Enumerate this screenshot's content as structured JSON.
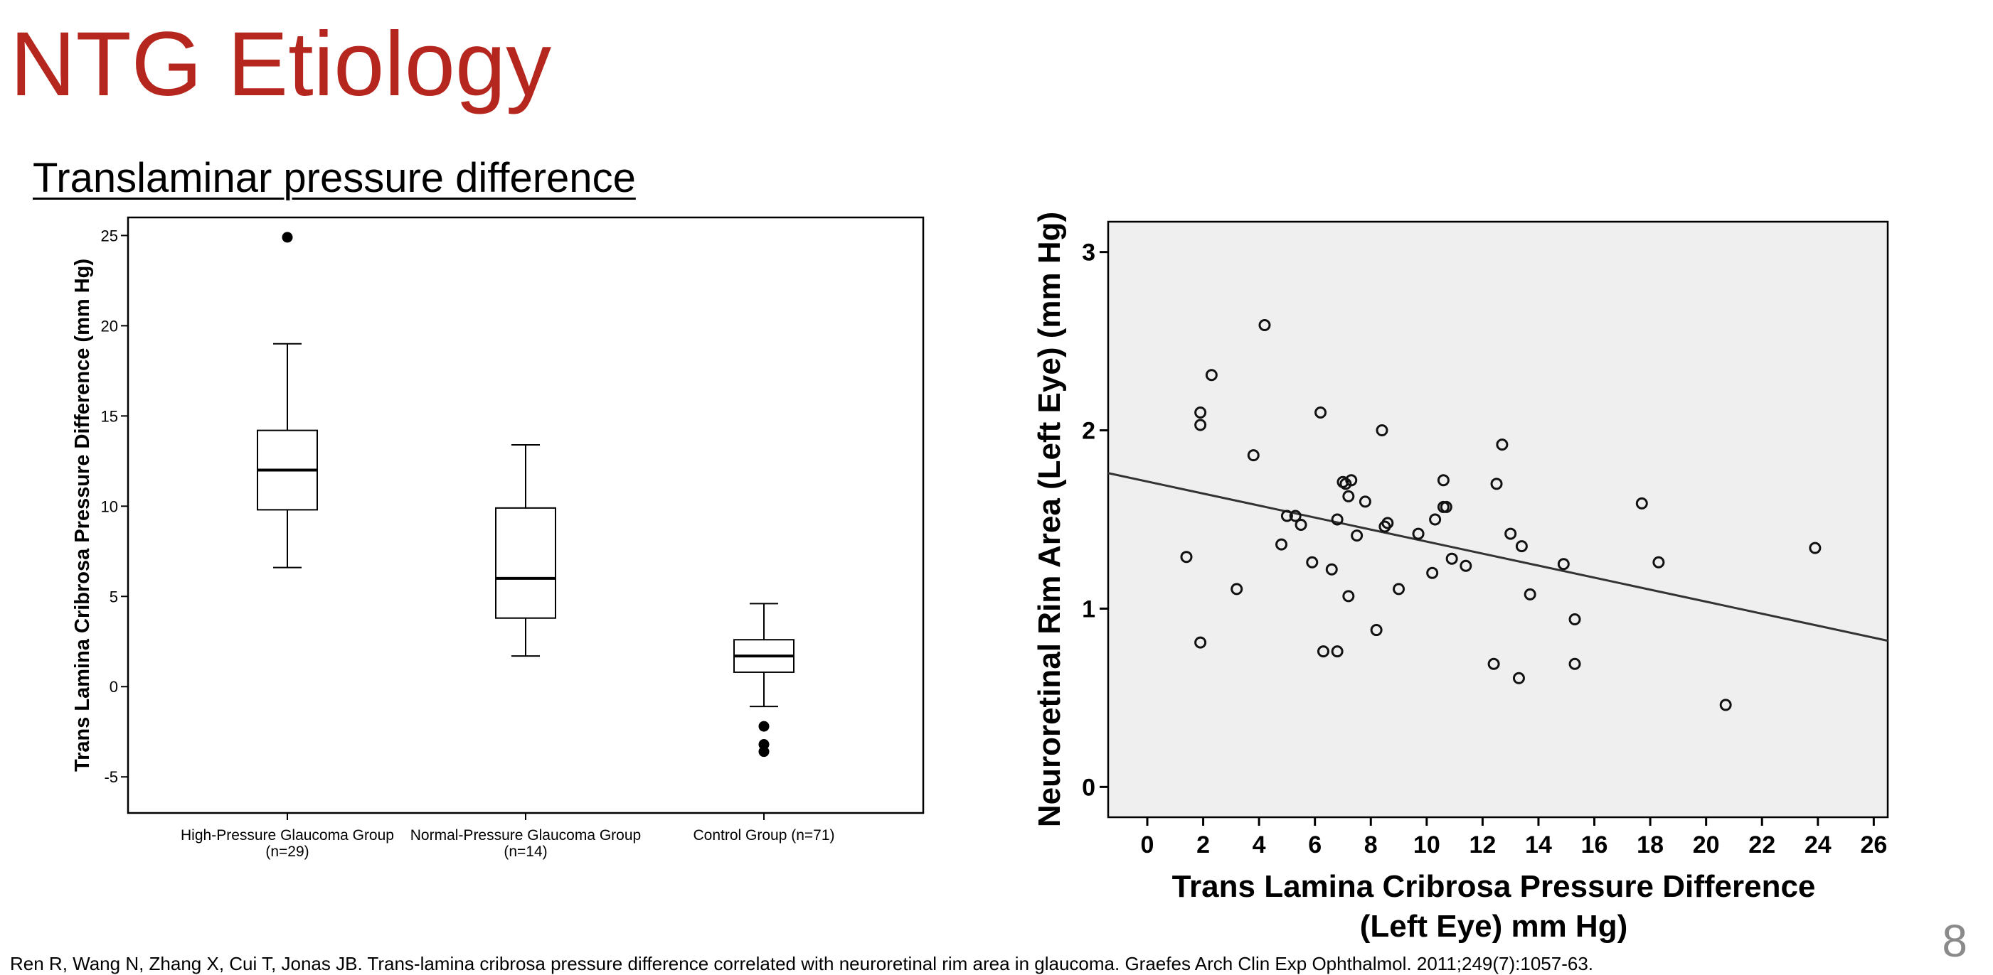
{
  "slide": {
    "title": "NTG Etiology",
    "subtitle": "Translaminar pressure difference",
    "footnote": "Ren R, Wang N, Zhang X, Cui T, Jonas JB. Trans-lamina cribrosa pressure difference correlated with neuroretinal rim area in glaucoma. Graefes Arch Clin Exp Ophthalmol. 2011;249(7):1057-63.",
    "page_number": "8"
  },
  "chart_data": [
    {
      "type": "box",
      "title": "",
      "ylabel": "Trans Lamina Cribrosa Pressure Difference (mm Hg)",
      "xlabel": "",
      "ylim": [
        -7,
        26
      ],
      "yticks": [
        25,
        20,
        15,
        10,
        5,
        0,
        -5
      ],
      "grid": false,
      "groups": [
        {
          "label_line1": "High-Pressure Glaucoma Group",
          "label_line2": "(n=29)",
          "whisker_low": 6.6,
          "q1": 9.8,
          "median": 12.0,
          "q3": 14.2,
          "whisker_high": 19.0,
          "outliers": [
            24.9
          ]
        },
        {
          "label_line1": "Normal-Pressure Glaucoma Group",
          "label_line2": "(n=14)",
          "whisker_low": 1.7,
          "q1": 3.8,
          "median": 6.0,
          "q3": 9.9,
          "whisker_high": 13.4,
          "outliers": []
        },
        {
          "label_line1": "Control Group (n=71)",
          "label_line2": "",
          "whisker_low": -1.1,
          "q1": 0.8,
          "median": 1.7,
          "q3": 2.6,
          "whisker_high": 4.6,
          "outliers": [
            -2.2,
            -3.2,
            -3.6
          ]
        }
      ]
    },
    {
      "type": "scatter",
      "title": "",
      "ylabel": "Neuroretinal Rim Area (Left Eye) (mm Hg)",
      "xlabel_line1": "Trans Lamina Cribrosa Pressure Difference",
      "xlabel_line2": "(Left Eye) mm Hg)",
      "xlim": [
        -1.4,
        26.5
      ],
      "ylim": [
        -0.17,
        3.17
      ],
      "xticks": [
        0,
        2,
        4,
        6,
        8,
        10,
        12,
        14,
        16,
        18,
        20,
        22,
        24,
        26
      ],
      "yticks": [
        0,
        1,
        2,
        3
      ],
      "grid": false,
      "fit_line": {
        "x": [
          -1.4,
          26.5
        ],
        "y": [
          1.76,
          0.82
        ]
      },
      "points": [
        [
          1.4,
          1.29
        ],
        [
          1.9,
          0.81
        ],
        [
          1.9,
          2.1
        ],
        [
          1.9,
          2.03
        ],
        [
          2.3,
          2.31
        ],
        [
          3.2,
          1.11
        ],
        [
          3.8,
          1.86
        ],
        [
          4.2,
          2.59
        ],
        [
          4.8,
          1.36
        ],
        [
          5.0,
          1.52
        ],
        [
          5.3,
          1.52
        ],
        [
          5.5,
          1.47
        ],
        [
          5.9,
          1.26
        ],
        [
          6.2,
          2.1
        ],
        [
          6.3,
          0.76
        ],
        [
          6.6,
          1.22
        ],
        [
          6.8,
          1.5
        ],
        [
          6.8,
          0.76
        ],
        [
          7.0,
          1.71
        ],
        [
          7.1,
          1.7
        ],
        [
          7.2,
          1.63
        ],
        [
          7.2,
          1.07
        ],
        [
          7.3,
          1.72
        ],
        [
          7.5,
          1.41
        ],
        [
          7.8,
          1.6
        ],
        [
          8.2,
          0.88
        ],
        [
          8.4,
          2.0
        ],
        [
          8.5,
          1.46
        ],
        [
          8.6,
          1.48
        ],
        [
          9.0,
          1.11
        ],
        [
          9.7,
          1.42
        ],
        [
          10.2,
          1.2
        ],
        [
          10.3,
          1.5
        ],
        [
          10.6,
          1.57
        ],
        [
          10.6,
          1.72
        ],
        [
          10.7,
          1.57
        ],
        [
          10.9,
          1.28
        ],
        [
          11.4,
          1.24
        ],
        [
          12.4,
          0.69
        ],
        [
          12.5,
          1.7
        ],
        [
          12.7,
          1.92
        ],
        [
          13.0,
          1.42
        ],
        [
          13.3,
          0.61
        ],
        [
          13.4,
          1.35
        ],
        [
          13.7,
          1.08
        ],
        [
          14.9,
          1.25
        ],
        [
          15.3,
          0.94
        ],
        [
          15.3,
          0.69
        ],
        [
          17.7,
          1.59
        ],
        [
          18.3,
          1.26
        ],
        [
          20.7,
          0.46
        ],
        [
          23.9,
          1.34
        ]
      ]
    }
  ]
}
